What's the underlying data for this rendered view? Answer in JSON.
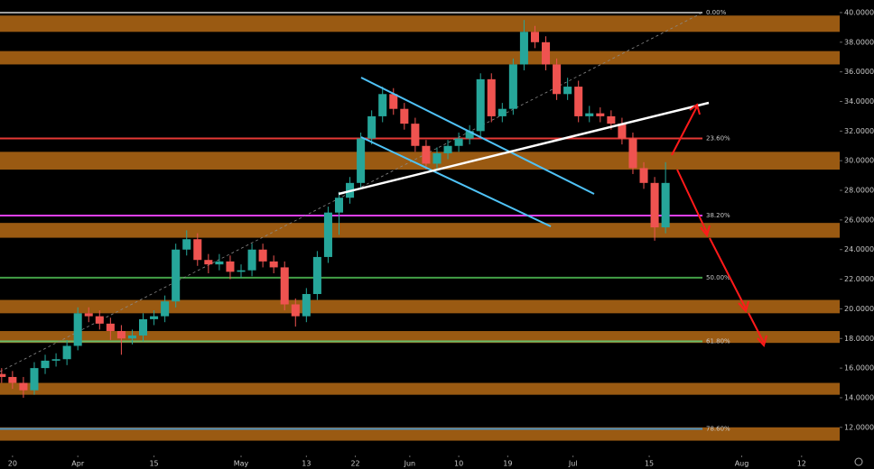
{
  "chart_data": {
    "type": "candlestick",
    "xlim": [
      -2.3,
      152
    ],
    "ylim": [
      10.1,
      40.85
    ],
    "xticks": [
      {
        "value": 0,
        "label": "20"
      },
      {
        "value": 12,
        "label": "Apr"
      },
      {
        "value": 26,
        "label": "15"
      },
      {
        "value": 42,
        "label": "May"
      },
      {
        "value": 54,
        "label": "13"
      },
      {
        "value": 63,
        "label": "22"
      },
      {
        "value": 73,
        "label": "Jun"
      },
      {
        "value": 82,
        "label": "10"
      },
      {
        "value": 91,
        "label": "19"
      },
      {
        "value": 103,
        "label": "Jul"
      },
      {
        "value": 117,
        "label": "15"
      },
      {
        "value": 134,
        "label": "Aug"
      },
      {
        "value": 145,
        "label": "12"
      }
    ],
    "yticks": [
      {
        "value": 12,
        "label": "12.0000"
      },
      {
        "value": 14,
        "label": "14.0000"
      },
      {
        "value": 16,
        "label": "16.0000"
      },
      {
        "value": 18,
        "label": "18.0000"
      },
      {
        "value": 20,
        "label": "20.0000"
      },
      {
        "value": 22,
        "label": "22.0000"
      },
      {
        "value": 24,
        "label": "24.0000"
      },
      {
        "value": 26,
        "label": "26.0000"
      },
      {
        "value": 28,
        "label": "28.0000"
      },
      {
        "value": 30,
        "label": "30.0000"
      },
      {
        "value": 32,
        "label": "32.0000"
      },
      {
        "value": 34,
        "label": "34.0000"
      },
      {
        "value": 36,
        "label": "36.0000"
      },
      {
        "value": 38,
        "label": "38.0000"
      },
      {
        "value": 40,
        "label": "40.0000"
      }
    ],
    "up_color": "#26a69a",
    "down_color": "#ef5350",
    "zone_color": "#9a5a12",
    "zones": [
      [
        38.7,
        39.8
      ],
      [
        36.5,
        37.4
      ],
      [
        29.4,
        30.6
      ],
      [
        24.8,
        25.8
      ],
      [
        19.7,
        20.6
      ],
      [
        17.7,
        18.5
      ],
      [
        14.2,
        15.0
      ],
      [
        11.1,
        12.0
      ]
    ],
    "levels": [
      {
        "value": 40,
        "label": "0.00%",
        "color": "#9e9e9e"
      },
      {
        "value": 31.5,
        "label": "23.60%",
        "color": "#e53935"
      },
      {
        "value": 26.3,
        "label": "38.20%",
        "color": "#e040fb"
      },
      {
        "value": 22.1,
        "label": "50.00%",
        "color": "#43a047"
      },
      {
        "value": 17.8,
        "label": "61.80%",
        "color": "#66bb6a"
      },
      {
        "value": 11.9,
        "label": "78.60%",
        "color": "#4a90c2"
      }
    ],
    "x": [
      -2,
      0,
      2,
      4,
      6,
      8,
      10,
      12,
      14,
      16,
      18,
      20,
      22,
      24,
      26,
      28,
      30,
      32,
      34,
      36,
      38,
      40,
      42,
      44,
      46,
      48,
      50,
      52,
      54,
      56,
      58,
      60,
      62,
      64,
      66,
      68,
      70,
      72,
      74,
      76,
      78,
      80,
      82,
      84,
      86,
      88,
      90,
      92,
      94,
      96,
      98,
      100,
      102,
      104,
      106,
      108,
      110,
      112,
      114,
      116,
      118,
      120
    ],
    "open": [
      15.6,
      15.4,
      15.0,
      14.5,
      16.0,
      16.5,
      16.6,
      17.5,
      19.7,
      19.5,
      19.0,
      18.5,
      18.0,
      18.2,
      19.3,
      19.5,
      20.5,
      24.0,
      24.7,
      23.3,
      23.0,
      23.2,
      22.5,
      22.6,
      24.0,
      23.2,
      22.8,
      20.3,
      19.5,
      21.0,
      23.5,
      26.5,
      27.5,
      28.5,
      31.5,
      33.0,
      34.5,
      33.5,
      32.5,
      31.0,
      29.8,
      30.5,
      31.0,
      31.5,
      32.0,
      35.5,
      33.0,
      33.5,
      36.5,
      38.7,
      38.0,
      36.5,
      34.5,
      35.0,
      33.0,
      33.2,
      33.0,
      32.5,
      31.5,
      29.5,
      28.5,
      25.5
    ],
    "high": [
      16.0,
      15.8,
      15.4,
      16.4,
      16.9,
      17.0,
      17.9,
      20.1,
      20.1,
      19.9,
      19.4,
      18.9,
      18.6,
      19.7,
      19.9,
      20.9,
      24.4,
      25.3,
      25.1,
      23.7,
      23.7,
      23.6,
      23.0,
      24.4,
      24.4,
      23.6,
      23.2,
      20.7,
      21.4,
      23.9,
      26.9,
      27.9,
      28.9,
      31.9,
      33.4,
      35.0,
      34.9,
      33.9,
      32.9,
      31.4,
      30.9,
      31.4,
      31.9,
      32.4,
      35.9,
      35.9,
      33.9,
      36.9,
      39.5,
      39.1,
      38.4,
      36.9,
      35.6,
      35.4,
      33.7,
      33.6,
      33.4,
      32.9,
      31.9,
      29.9,
      28.9,
      29.9
    ],
    "low": [
      15.0,
      14.6,
      14.0,
      14.2,
      15.6,
      16.1,
      16.2,
      17.2,
      19.1,
      18.6,
      17.9,
      16.9,
      17.6,
      17.8,
      18.9,
      19.1,
      20.1,
      23.6,
      22.9,
      22.4,
      22.6,
      22.0,
      22.1,
      22.2,
      22.8,
      22.4,
      19.9,
      18.8,
      19.1,
      20.6,
      23.1,
      25.0,
      27.1,
      28.1,
      31.1,
      32.6,
      33.1,
      32.1,
      30.6,
      29.4,
      29.4,
      30.1,
      30.6,
      31.1,
      31.6,
      32.6,
      32.6,
      33.1,
      36.1,
      37.6,
      36.1,
      34.1,
      34.1,
      32.6,
      32.6,
      32.6,
      32.1,
      31.1,
      29.1,
      28.1,
      24.6,
      25.1
    ],
    "close": [
      15.4,
      15.0,
      14.5,
      16.0,
      16.5,
      16.6,
      17.5,
      19.7,
      19.5,
      19.0,
      18.5,
      18.0,
      18.2,
      19.3,
      19.5,
      20.5,
      24.0,
      24.7,
      23.3,
      23.0,
      23.2,
      22.5,
      22.6,
      24.0,
      23.2,
      22.8,
      20.3,
      19.5,
      21.0,
      23.5,
      26.5,
      27.5,
      28.5,
      31.5,
      33.0,
      34.5,
      33.5,
      32.5,
      31.0,
      29.8,
      30.5,
      31.0,
      31.5,
      32.0,
      35.5,
      33.0,
      33.5,
      36.5,
      38.7,
      38.0,
      36.5,
      34.5,
      35.0,
      33.0,
      33.2,
      33.0,
      32.5,
      31.5,
      29.5,
      28.5,
      25.5,
      28.5
    ]
  }
}
